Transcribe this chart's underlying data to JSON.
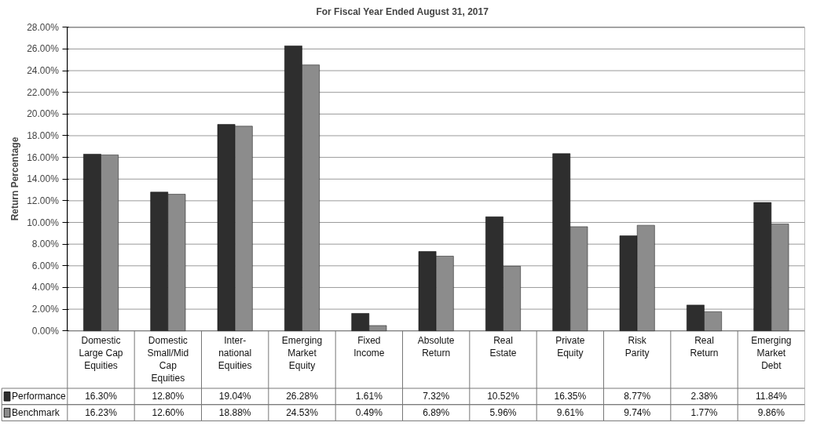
{
  "chart_data": {
    "type": "bar",
    "title": "For Fiscal Year Ended August 31, 2017",
    "ylabel": "Return Percentage",
    "categories": [
      "Domestic Large Cap Equities",
      "Domestic Small/Mid Cap Equities",
      "Inter-national Equities",
      "Emerging Market Equity",
      "Fixed Income",
      "Absolute Return",
      "Real Estate",
      "Private Equity",
      "Risk Parity",
      "Real Return",
      "Emerging Market Debt"
    ],
    "series": [
      {
        "name": "Performance",
        "color": "#2e2e2e",
        "values": [
          16.3,
          12.8,
          19.04,
          26.28,
          1.61,
          7.32,
          10.52,
          16.35,
          8.77,
          2.38,
          11.84
        ],
        "value_labels": [
          "16.30%",
          "12.80%",
          "19.04%",
          "26.28%",
          "1.61%",
          "7.32%",
          "10.52%",
          "16.35%",
          "8.77%",
          "2.38%",
          "11.84%"
        ]
      },
      {
        "name": "Benchmark",
        "color": "#8c8c8c",
        "values": [
          16.23,
          12.6,
          18.88,
          24.53,
          0.49,
          6.89,
          5.96,
          9.61,
          9.74,
          1.77,
          9.86
        ],
        "value_labels": [
          "16.23%",
          "12.60%",
          "18.88%",
          "24.53%",
          "0.49%",
          "6.89%",
          "5.96%",
          "9.61%",
          "9.74%",
          "1.77%",
          "9.86%"
        ]
      }
    ],
    "ylim": [
      0,
      28
    ],
    "yticks": [
      {
        "value": 0,
        "label": "0.00%"
      },
      {
        "value": 2,
        "label": "2.00%"
      },
      {
        "value": 4,
        "label": "4.00%"
      },
      {
        "value": 6,
        "label": "6.00%"
      },
      {
        "value": 8,
        "label": "8.00%"
      },
      {
        "value": 10,
        "label": "10.00%"
      },
      {
        "value": 12,
        "label": "12.00%"
      },
      {
        "value": 14,
        "label": "14.00%"
      },
      {
        "value": 16,
        "label": "16.00%"
      },
      {
        "value": 18,
        "label": "18.00%"
      },
      {
        "value": 20,
        "label": "20.00%"
      },
      {
        "value": 22,
        "label": "22.00%"
      },
      {
        "value": 24,
        "label": "24.00%"
      },
      {
        "value": 26,
        "label": "26.00%"
      },
      {
        "value": 28,
        "label": "28.00%"
      }
    ],
    "grid": "y",
    "legend": "bottom left"
  }
}
